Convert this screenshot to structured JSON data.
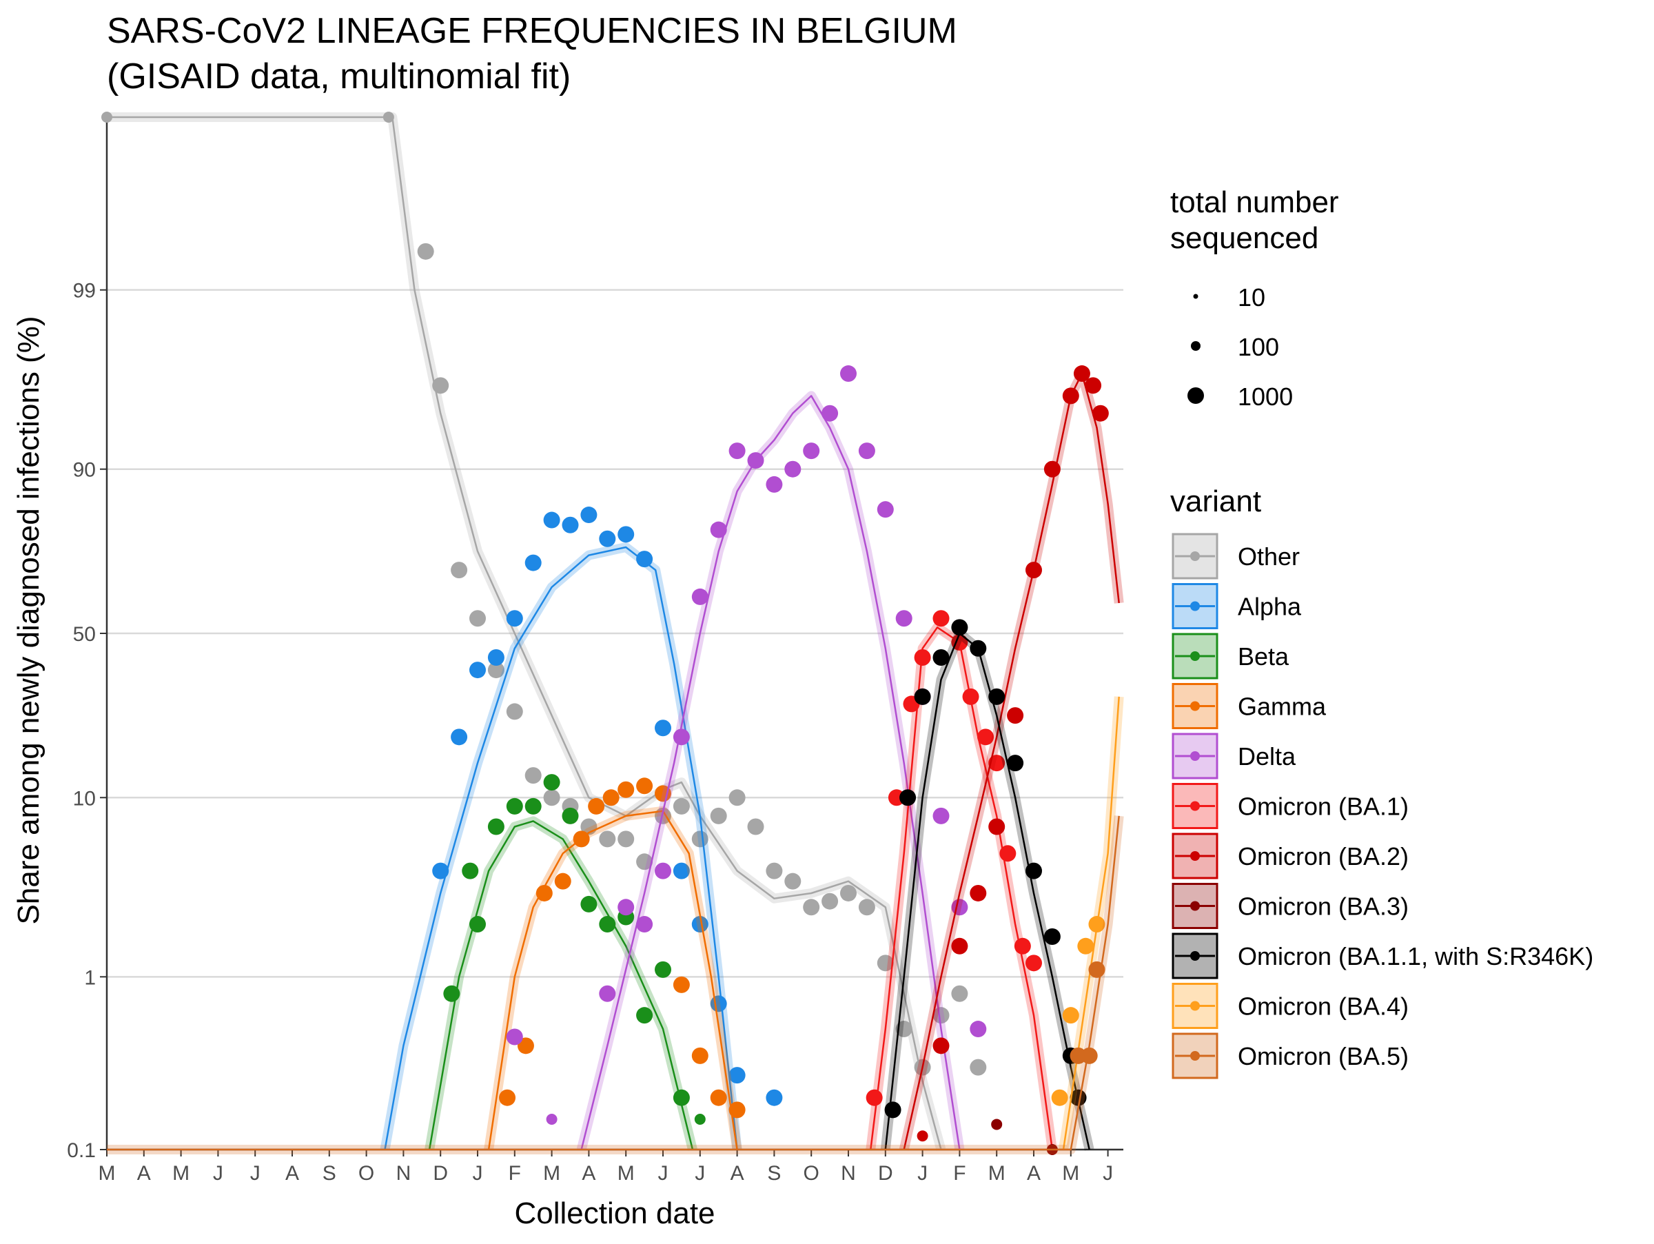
{
  "chart_data": {
    "type": "line",
    "title": "SARS-CoV2 LINEAGE FREQUENCIES IN BELGIUM",
    "subtitle": "(GISAID data, multinomial fit)",
    "xlabel": "Collection date",
    "ylabel": "Share among newly diagnosed infections (%)",
    "y_scale": "logit",
    "ylim": [
      0.1,
      99.9
    ],
    "y_ticks": [
      0.1,
      1,
      10,
      50,
      90,
      99
    ],
    "y_tick_labels": [
      "0.1",
      "1",
      "10",
      "50",
      "90",
      "99"
    ],
    "x_tick_labels": [
      "M",
      "A",
      "M",
      "J",
      "J",
      "A",
      "S",
      "O",
      "N",
      "D",
      "J",
      "F",
      "M",
      "A",
      "M",
      "J",
      "J",
      "A",
      "S",
      "O",
      "N",
      "D",
      "J",
      "F",
      "M",
      "A",
      "M",
      "J"
    ],
    "x_range_months": [
      0,
      27.3
    ],
    "grid": "horizontal-major",
    "legend_position": "right",
    "size_legend": {
      "title_line1": "total number",
      "title_line2": "sequenced",
      "labels": [
        "10",
        "100",
        "1000"
      ]
    },
    "variant_legend": {
      "title": "variant"
    },
    "series": [
      {
        "name": "Other",
        "color": "#a6a6a6",
        "fit": [
          [
            0,
            99.97
          ],
          [
            7.7,
            99.97
          ],
          [
            8.3,
            99
          ],
          [
            9,
            95
          ],
          [
            10,
            75
          ],
          [
            11,
            50
          ],
          [
            12,
            25
          ],
          [
            13,
            10
          ],
          [
            14,
            8
          ],
          [
            15,
            11
          ],
          [
            15.5,
            12
          ],
          [
            16,
            8
          ],
          [
            17,
            4
          ],
          [
            18,
            2.8
          ],
          [
            19,
            3
          ],
          [
            20,
            3.5
          ],
          [
            21,
            2.5
          ],
          [
            21.5,
            0.8
          ],
          [
            22,
            0.25
          ],
          [
            22.5,
            0.1
          ]
        ],
        "points": [
          [
            0,
            99.9
          ],
          [
            7.6,
            99.9
          ],
          [
            8.6,
            99.4
          ],
          [
            9,
            96.5
          ],
          [
            9.5,
            70
          ],
          [
            10,
            55
          ],
          [
            10.5,
            38
          ],
          [
            11,
            26
          ],
          [
            11.5,
            13
          ],
          [
            12,
            10
          ],
          [
            12.5,
            9
          ],
          [
            13,
            7
          ],
          [
            13.5,
            6
          ],
          [
            14,
            6
          ],
          [
            14.5,
            4.5
          ],
          [
            15,
            8
          ],
          [
            15.5,
            9
          ],
          [
            16,
            6
          ],
          [
            16.5,
            8
          ],
          [
            17,
            10
          ],
          [
            17.5,
            7
          ],
          [
            18,
            4
          ],
          [
            18.5,
            3.5
          ],
          [
            19,
            2.5
          ],
          [
            19.5,
            2.7
          ],
          [
            20,
            3
          ],
          [
            20.5,
            2.5
          ],
          [
            21,
            1.2
          ],
          [
            21.5,
            0.5
          ],
          [
            22,
            0.3
          ],
          [
            22.5,
            0.6
          ],
          [
            23,
            0.8
          ],
          [
            23.5,
            0.3
          ]
        ]
      },
      {
        "name": "Alpha",
        "color": "#1e88e5",
        "fit": [
          [
            7.5,
            0.1
          ],
          [
            8,
            0.4
          ],
          [
            9,
            3
          ],
          [
            10,
            15
          ],
          [
            11,
            45
          ],
          [
            12,
            65
          ],
          [
            13,
            74
          ],
          [
            14,
            76
          ],
          [
            14.8,
            70
          ],
          [
            15.3,
            40
          ],
          [
            16,
            8
          ],
          [
            16.5,
            1
          ],
          [
            17,
            0.1
          ]
        ],
        "points": [
          [
            9,
            4
          ],
          [
            9.5,
            20
          ],
          [
            10,
            38
          ],
          [
            10.5,
            42
          ],
          [
            11,
            55
          ],
          [
            11.5,
            72
          ],
          [
            12,
            82
          ],
          [
            12.5,
            81
          ],
          [
            13,
            83
          ],
          [
            13.5,
            78
          ],
          [
            14,
            79
          ],
          [
            14.5,
            73
          ],
          [
            15,
            22
          ],
          [
            15.5,
            4
          ],
          [
            16,
            2
          ],
          [
            16.5,
            0.7
          ],
          [
            17,
            0.27
          ],
          [
            18,
            0.2
          ]
        ]
      },
      {
        "name": "Beta",
        "color": "#1a8f1a",
        "fit": [
          [
            8.7,
            0.1
          ],
          [
            9.5,
            1
          ],
          [
            10.3,
            4
          ],
          [
            11,
            7
          ],
          [
            11.5,
            7.5
          ],
          [
            12.3,
            6
          ],
          [
            13,
            3.5
          ],
          [
            14,
            1.5
          ],
          [
            15,
            0.5
          ],
          [
            15.8,
            0.1
          ]
        ],
        "points": [
          [
            9.3,
            0.8
          ],
          [
            9.8,
            4
          ],
          [
            10,
            2
          ],
          [
            10.5,
            7
          ],
          [
            11,
            9
          ],
          [
            11.5,
            9
          ],
          [
            12,
            12
          ],
          [
            12.5,
            8
          ],
          [
            13,
            2.6
          ],
          [
            13.5,
            2
          ],
          [
            14,
            2.2
          ],
          [
            14.5,
            0.6
          ],
          [
            15,
            1.1
          ],
          [
            15.5,
            0.2
          ],
          [
            16,
            0.15
          ]
        ]
      },
      {
        "name": "Gamma",
        "color": "#f06d00",
        "fit": [
          [
            10.3,
            0.1
          ],
          [
            11,
            1
          ],
          [
            11.5,
            2.5
          ],
          [
            12.3,
            5
          ],
          [
            13,
            6.5
          ],
          [
            14,
            8
          ],
          [
            15,
            8.5
          ],
          [
            15.7,
            5
          ],
          [
            16.3,
            1
          ],
          [
            17,
            0.1
          ]
        ],
        "points": [
          [
            10.8,
            0.2
          ],
          [
            11.3,
            0.4
          ],
          [
            11.8,
            3
          ],
          [
            12.3,
            3.5
          ],
          [
            12.8,
            6
          ],
          [
            13.2,
            9
          ],
          [
            13.6,
            10
          ],
          [
            14,
            11
          ],
          [
            14.5,
            11.5
          ],
          [
            15,
            10.5
          ],
          [
            15.5,
            0.9
          ],
          [
            16,
            0.35
          ],
          [
            16.5,
            0.2
          ],
          [
            17,
            0.17
          ]
        ]
      },
      {
        "name": "Delta",
        "color": "#b14ed1",
        "fit": [
          [
            12.8,
            0.1
          ],
          [
            13.5,
            0.4
          ],
          [
            14.5,
            3
          ],
          [
            15.3,
            15
          ],
          [
            16,
            50
          ],
          [
            16.5,
            75
          ],
          [
            17,
            87
          ],
          [
            17.5,
            91
          ],
          [
            18,
            93
          ],
          [
            18.5,
            95
          ],
          [
            19,
            96
          ],
          [
            19.5,
            94
          ],
          [
            20,
            90
          ],
          [
            20.5,
            75
          ],
          [
            21,
            45
          ],
          [
            21.5,
            15
          ],
          [
            22,
            3
          ],
          [
            22.5,
            0.5
          ],
          [
            23,
            0.1
          ]
        ],
        "points": [
          [
            11,
            0.45
          ],
          [
            12,
            0.15
          ],
          [
            13.5,
            0.8
          ],
          [
            14,
            2.5
          ],
          [
            14.5,
            2
          ],
          [
            15,
            4
          ],
          [
            15.5,
            20
          ],
          [
            16,
            62
          ],
          [
            16.5,
            80
          ],
          [
            17,
            92
          ],
          [
            17.5,
            91
          ],
          [
            18,
            88
          ],
          [
            18.5,
            90
          ],
          [
            19,
            92
          ],
          [
            19.5,
            95
          ],
          [
            20,
            97
          ],
          [
            20.5,
            92
          ],
          [
            21,
            84
          ],
          [
            21.5,
            55
          ],
          [
            22,
            30
          ],
          [
            22.5,
            8
          ],
          [
            23,
            2.5
          ],
          [
            23.5,
            0.5
          ]
        ]
      },
      {
        "name": "Omicron (BA.1)",
        "color": "#f21818",
        "fit": [
          [
            20.6,
            0.1
          ],
          [
            21,
            0.5
          ],
          [
            21.5,
            5
          ],
          [
            22,
            45
          ],
          [
            22.4,
            52
          ],
          [
            23,
            47
          ],
          [
            23.5,
            20
          ],
          [
            24,
            8
          ],
          [
            24.5,
            2
          ],
          [
            25,
            0.6
          ],
          [
            25.5,
            0.1
          ]
        ],
        "points": [
          [
            20.7,
            0.2
          ],
          [
            21.3,
            10
          ],
          [
            21.7,
            28
          ],
          [
            22,
            42
          ],
          [
            22.5,
            55
          ],
          [
            23,
            47
          ],
          [
            23.3,
            30
          ],
          [
            23.7,
            20
          ],
          [
            24,
            15
          ],
          [
            24.3,
            5
          ],
          [
            24.7,
            1.5
          ],
          [
            25,
            1.2
          ]
        ]
      },
      {
        "name": "Omicron (BA.2)",
        "color": "#cc0000",
        "fit": [
          [
            21.5,
            0.1
          ],
          [
            22,
            0.3
          ],
          [
            22.5,
            1
          ],
          [
            23,
            3
          ],
          [
            23.5,
            8
          ],
          [
            24,
            20
          ],
          [
            24.5,
            45
          ],
          [
            25,
            70
          ],
          [
            25.5,
            88
          ],
          [
            26,
            96
          ],
          [
            26.3,
            97
          ],
          [
            26.7,
            94
          ],
          [
            27,
            85
          ],
          [
            27.3,
            60
          ]
        ],
        "points": [
          [
            22,
            0.12
          ],
          [
            22.5,
            0.4
          ],
          [
            23,
            1.5
          ],
          [
            23.5,
            3
          ],
          [
            24,
            7
          ],
          [
            24.5,
            25
          ],
          [
            25,
            70
          ],
          [
            25.5,
            90
          ],
          [
            26,
            96
          ],
          [
            26.3,
            97
          ],
          [
            26.6,
            96.5
          ],
          [
            26.8,
            95
          ]
        ]
      },
      {
        "name": "Omicron (BA.3)",
        "color": "#8b0000",
        "fit": [],
        "points": [
          [
            24,
            0.14
          ],
          [
            25.5,
            0.1
          ]
        ]
      },
      {
        "name": "Omicron (BA.1.1, with S:R346K)",
        "color": "#000000",
        "fit": [
          [
            21,
            0.1
          ],
          [
            21.5,
            1
          ],
          [
            22,
            10
          ],
          [
            22.5,
            35
          ],
          [
            23,
            50
          ],
          [
            23.5,
            45
          ],
          [
            24,
            25
          ],
          [
            24.5,
            10
          ],
          [
            25,
            3
          ],
          [
            25.5,
            1
          ],
          [
            26,
            0.3
          ],
          [
            26.5,
            0.1
          ]
        ],
        "points": [
          [
            21.2,
            0.17
          ],
          [
            21.6,
            10
          ],
          [
            22,
            30
          ],
          [
            22.5,
            42
          ],
          [
            23,
            52
          ],
          [
            23.5,
            45
          ],
          [
            24,
            30
          ],
          [
            24.5,
            15
          ],
          [
            25,
            4
          ],
          [
            25.5,
            1.7
          ],
          [
            26,
            0.35
          ],
          [
            26.2,
            0.2
          ]
        ]
      },
      {
        "name": "Omicron (BA.4)",
        "color": "#ff9f1c",
        "fit": [
          [
            25.8,
            0.1
          ],
          [
            26.5,
            1
          ],
          [
            27,
            5
          ],
          [
            27.3,
            30
          ]
        ],
        "points": [
          [
            25.7,
            0.2
          ],
          [
            26,
            0.6
          ],
          [
            26.4,
            1.5
          ],
          [
            26.7,
            2
          ]
        ]
      },
      {
        "name": "Omicron (BA.5)",
        "color": "#d2691e",
        "fit": [
          [
            0,
            0.1
          ],
          [
            26,
            0.1
          ],
          [
            26.5,
            0.4
          ],
          [
            27,
            2
          ],
          [
            27.3,
            8
          ]
        ],
        "points": [
          [
            26.2,
            0.35
          ],
          [
            26.5,
            0.35
          ],
          [
            26.7,
            1.1
          ]
        ]
      }
    ]
  }
}
